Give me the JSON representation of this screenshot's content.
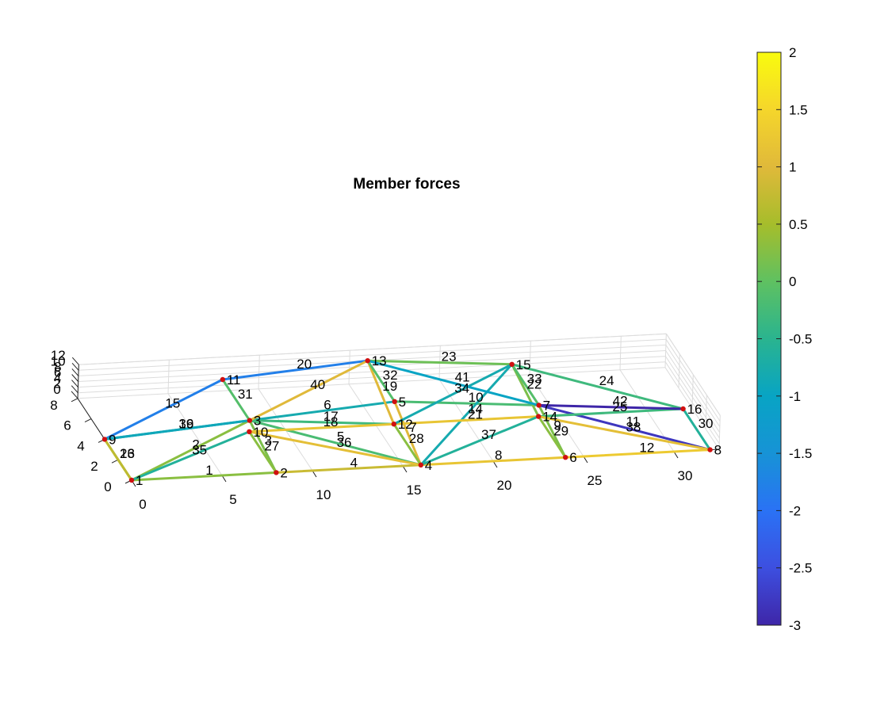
{
  "chart_data": {
    "type": "truss",
    "title": "Member forces",
    "x_ticks": [
      "0",
      "5",
      "10",
      "15",
      "20",
      "25",
      "30"
    ],
    "y_ticks": [
      "0",
      "2",
      "4",
      "6",
      "8"
    ],
    "z_ticks": [
      "0",
      "2",
      "4",
      "6",
      "8",
      "10",
      "12"
    ],
    "colorbar": {
      "ticks": [
        "2",
        "1.5",
        "1",
        "0.5",
        "0",
        "-0.5",
        "-1",
        "-1.5",
        "-2",
        "-2.5",
        "-3"
      ],
      "range": [
        -3,
        2
      ],
      "colormap": "parula"
    },
    "nodes": [
      {
        "id": "1",
        "x": 0,
        "y": 0,
        "z": 0
      },
      {
        "id": "2",
        "x": 8,
        "y": 0,
        "z": 0
      },
      {
        "id": "3",
        "x": 8,
        "y": 8,
        "z": 4
      },
      {
        "id": "4",
        "x": 16,
        "y": 0,
        "z": 0
      },
      {
        "id": "5",
        "x": 16,
        "y": 8,
        "z": 8
      },
      {
        "id": "6",
        "x": 24,
        "y": 0,
        "z": 0
      },
      {
        "id": "7",
        "x": 24,
        "y": 8,
        "z": 4
      },
      {
        "id": "8",
        "x": 32,
        "y": 0,
        "z": 0
      },
      {
        "id": "9",
        "x": 0,
        "y": 8,
        "z": 0
      },
      {
        "id": "10",
        "x": 8,
        "y": 8,
        "z": 0
      },
      {
        "id": "11",
        "x": 8,
        "y": 16,
        "z": 4
      },
      {
        "id": "12",
        "x": 16,
        "y": 8,
        "z": 0
      },
      {
        "id": "13",
        "x": 16,
        "y": 16,
        "z": 8
      },
      {
        "id": "14",
        "x": 24,
        "y": 8,
        "z": 0
      },
      {
        "id": "15",
        "x": 24,
        "y": 16,
        "z": 4
      },
      {
        "id": "16",
        "x": 32,
        "y": 8,
        "z": 0
      }
    ],
    "members": [
      {
        "id": "1",
        "n": [
          "1",
          "2"
        ],
        "force": 0.3
      },
      {
        "id": "2",
        "n": [
          "1",
          "3"
        ],
        "force": 0.3
      },
      {
        "id": "3",
        "n": [
          "2",
          "3"
        ],
        "force": 0.2
      },
      {
        "id": "4",
        "n": [
          "2",
          "4"
        ],
        "force": 0.8
      },
      {
        "id": "5",
        "n": [
          "3",
          "4"
        ],
        "force": -0.2
      },
      {
        "id": "6",
        "n": [
          "3",
          "5"
        ],
        "force": -0.8
      },
      {
        "id": "7",
        "n": [
          "4",
          "5"
        ],
        "force": 1.0
      },
      {
        "id": "8",
        "n": [
          "4",
          "6"
        ],
        "force": 1.2
      },
      {
        "id": "9",
        "n": [
          "6",
          "7"
        ],
        "force": 0.2
      },
      {
        "id": "10",
        "n": [
          "5",
          "7"
        ],
        "force": -0.2
      },
      {
        "id": "11",
        "n": [
          "7",
          "8"
        ],
        "force": -2.8
      },
      {
        "id": "12",
        "n": [
          "6",
          "8"
        ],
        "force": 1.3
      },
      {
        "id": "13",
        "n": [
          "1",
          "9"
        ],
        "force": 0.7
      },
      {
        "id": "14",
        "n": [
          "4",
          "15"
        ],
        "force": -0.8
      },
      {
        "id": "15",
        "n": [
          "9",
          "11"
        ],
        "force": -1.8
      },
      {
        "id": "16",
        "n": [
          "9",
          "3"
        ],
        "force": -0.9
      },
      {
        "id": "17",
        "n": [
          "3",
          "12"
        ],
        "force": -0.3
      },
      {
        "id": "18",
        "n": [
          "10",
          "12"
        ],
        "force": 1.2
      },
      {
        "id": "19",
        "n": [
          "12",
          "13"
        ],
        "force": 1.0
      },
      {
        "id": "20",
        "n": [
          "11",
          "13"
        ],
        "force": -1.8
      },
      {
        "id": "21",
        "n": [
          "12",
          "14"
        ],
        "force": 1.2
      },
      {
        "id": "22",
        "n": [
          "14",
          "15"
        ],
        "force": 0.2
      },
      {
        "id": "23",
        "n": [
          "13",
          "15"
        ],
        "force": 0.1
      },
      {
        "id": "24",
        "n": [
          "15",
          "16"
        ],
        "force": -0.3
      },
      {
        "id": "25",
        "n": [
          "14",
          "16"
        ],
        "force": -0.3
      },
      {
        "id": "26",
        "n": [
          "9",
          "1"
        ],
        "force": 0.7
      },
      {
        "id": "27",
        "n": [
          "2",
          "10"
        ],
        "force": 0.3
      },
      {
        "id": "28",
        "n": [
          "4",
          "12"
        ],
        "force": 0.3
      },
      {
        "id": "29",
        "n": [
          "6",
          "14"
        ],
        "force": 0.3
      },
      {
        "id": "30",
        "n": [
          "8",
          "16"
        ],
        "force": -0.6
      },
      {
        "id": "31",
        "n": [
          "11",
          "3"
        ],
        "force": -0.1
      },
      {
        "id": "32",
        "n": [
          "13",
          "5"
        ],
        "force": -0.1
      },
      {
        "id": "33",
        "n": [
          "15",
          "7"
        ],
        "force": -0.1
      },
      {
        "id": "34",
        "n": [
          "12",
          "15"
        ],
        "force": -0.8
      },
      {
        "id": "35",
        "n": [
          "1",
          "10"
        ],
        "force": -0.6
      },
      {
        "id": "36",
        "n": [
          "10",
          "4"
        ],
        "force": 1.1
      },
      {
        "id": "37",
        "n": [
          "4",
          "14"
        ],
        "force": -0.6
      },
      {
        "id": "38",
        "n": [
          "14",
          "8"
        ],
        "force": 1.1
      },
      {
        "id": "39",
        "n": [
          "9",
          "3"
        ],
        "force": -0.9
      },
      {
        "id": "40",
        "n": [
          "3",
          "13"
        ],
        "force": 1.0
      },
      {
        "id": "41",
        "n": [
          "13",
          "7"
        ],
        "force": -1.0
      },
      {
        "id": "42",
        "n": [
          "7",
          "16"
        ],
        "force": -3.0
      }
    ]
  }
}
